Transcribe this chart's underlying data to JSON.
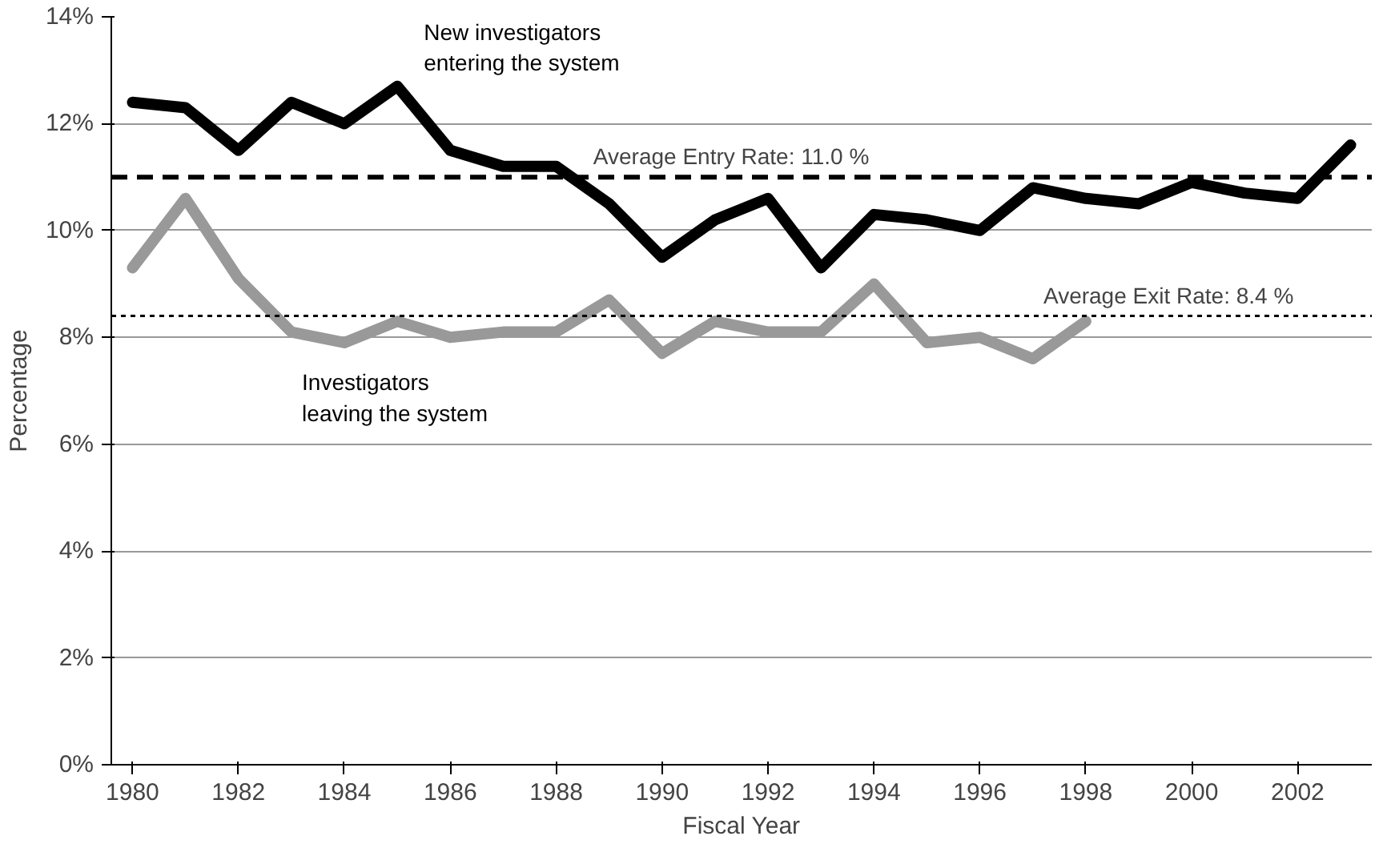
{
  "chart_data": {
    "type": "line",
    "xlabel": "Fiscal Year",
    "ylabel": "Percentage",
    "x": [
      1980,
      1981,
      1982,
      1983,
      1984,
      1985,
      1986,
      1987,
      1988,
      1989,
      1990,
      1991,
      1992,
      1993,
      1994,
      1995,
      1996,
      1997,
      1998,
      1999,
      2000,
      2001,
      2002,
      2003
    ],
    "series": [
      {
        "name": "New investigators\nentering the system",
        "color": "#000000",
        "values": [
          12.4,
          12.3,
          11.5,
          12.4,
          12.0,
          12.7,
          11.5,
          11.2,
          11.2,
          10.5,
          9.5,
          10.2,
          10.6,
          9.3,
          10.3,
          10.2,
          10.0,
          10.8,
          10.6,
          10.5,
          10.9,
          10.7,
          10.6,
          11.6
        ]
      },
      {
        "name": "Investigators\nleaving the system",
        "color": "#999999",
        "values": [
          9.3,
          10.6,
          9.1,
          8.1,
          7.9,
          8.3,
          8.0,
          8.1,
          8.1,
          8.7,
          7.7,
          8.3,
          8.1,
          8.1,
          9.0,
          7.9,
          8.0,
          7.6,
          8.3,
          null,
          null,
          null,
          null,
          null
        ]
      }
    ],
    "xlim": [
      1979.6,
      2003.4
    ],
    "ylim": [
      0,
      14
    ],
    "xticks": [
      1980,
      1982,
      1984,
      1986,
      1988,
      1990,
      1992,
      1994,
      1996,
      1998,
      2000,
      2002
    ],
    "yticks": [
      {
        "value": 0,
        "label": "0%"
      },
      {
        "value": 2,
        "label": "2%"
      },
      {
        "value": 4,
        "label": "4%"
      },
      {
        "value": 6,
        "label": "6%"
      },
      {
        "value": 8,
        "label": "8%"
      },
      {
        "value": 10,
        "label": "10%"
      },
      {
        "value": 12,
        "label": "12%"
      },
      {
        "value": 14,
        "label": "14%"
      }
    ],
    "ref_lines": [
      {
        "axis": "y",
        "value": 11.0,
        "label": "Average Entry Rate: 11.0 %",
        "color": "#000000",
        "line_style": "dashed"
      },
      {
        "axis": "y",
        "value": 8.4,
        "label": "Average Exit Rate: 8.4 %",
        "color": "#000000",
        "line_style": "dotted"
      }
    ],
    "grid": "y",
    "marker": "none",
    "line_style": "solid"
  }
}
